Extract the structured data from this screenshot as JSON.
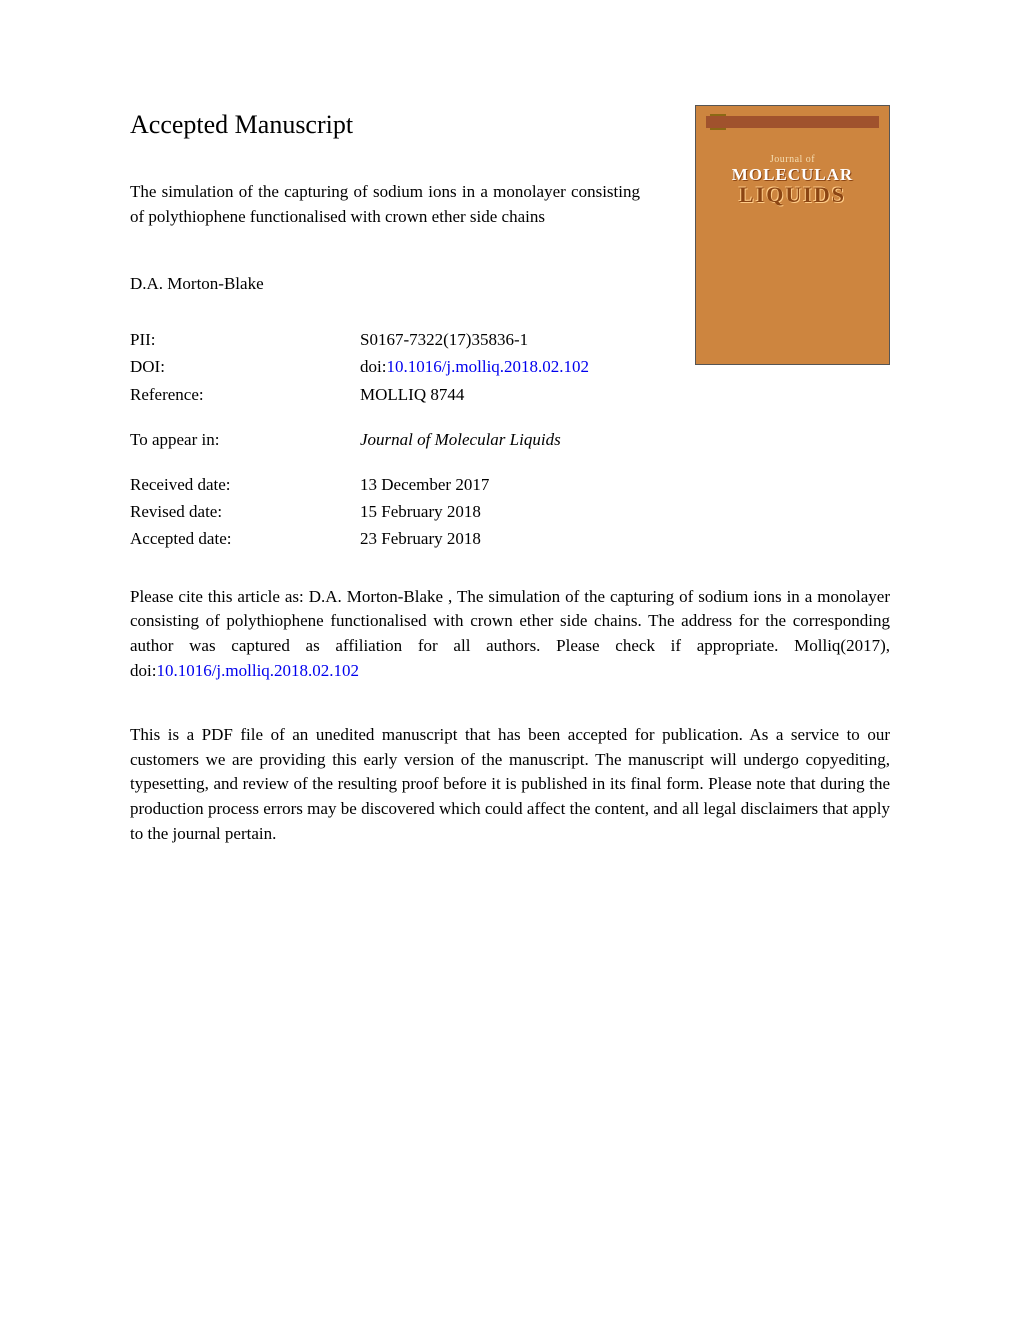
{
  "heading": "Accepted Manuscript",
  "article_title": "The simulation of the capturing of sodium ions in a monolayer consisting of polythiophene functionalised with crown ether side chains",
  "authors": "D.A. Morton-Blake",
  "meta": {
    "pii_label": "PII:",
    "pii_value": "S0167-7322(17)35836-1",
    "doi_label": "DOI:",
    "doi_prefix": "doi:",
    "doi_link": "10.1016/j.molliq.2018.02.102",
    "reference_label": "Reference:",
    "reference_value": "MOLLIQ 8744",
    "appear_label": "To appear in:",
    "appear_value": "Journal of Molecular Liquids",
    "received_label": "Received date:",
    "received_value": "13 December 2017",
    "revised_label": "Revised date:",
    "revised_value": "15 February 2018",
    "accepted_label": "Accepted date:",
    "accepted_value": "23 February 2018"
  },
  "citation_pre": "Please cite this article as: D.A. Morton-Blake , The simulation of the capturing of sodium ions in a monolayer consisting of polythiophene functionalised with crown ether side chains. The address for the corresponding author was captured as affiliation for all authors. Please check if appropriate. Molliq(2017), doi:",
  "citation_link": "10.1016/j.molliq.2018.02.102",
  "disclaimer": "This is a PDF file of an unedited manuscript that has been accepted for publication. As a service to our customers we are providing this early version of the manuscript. The manuscript will undergo copyediting, typesetting, and review of the resulting proof before it is published in its final form. Please note that during the production process errors may be discovered which could affect the content, and all legal disclaimers that apply to the journal pertain.",
  "cover": {
    "journal_of": "Journal of",
    "molecular": "MOLECULAR",
    "liquids": "LIQUIDS",
    "bg_color": "#cd853f",
    "accent_color": "#a0522d"
  }
}
